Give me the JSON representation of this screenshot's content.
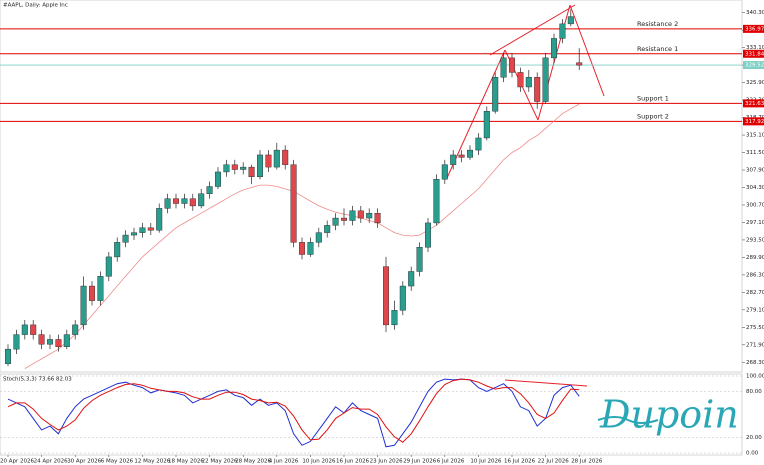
{
  "chart_data": [
    {
      "type": "candlestick",
      "title": "#AAPL, Daily: Apple Inc",
      "categories": [
        "20 Apr 2026",
        null,
        null,
        null,
        "24 Apr 2026",
        null,
        null,
        null,
        "30 Apr 2026",
        null,
        null,
        null,
        "6 May 2026",
        null,
        null,
        null,
        "12 May 2026",
        null,
        null,
        null,
        "18 May 2026",
        null,
        null,
        null,
        "22 May 2026",
        null,
        null,
        null,
        "28 May 2026",
        null,
        null,
        null,
        "4 Jun 2026",
        null,
        null,
        null,
        "10 Jun 2026",
        null,
        null,
        null,
        "16 Jun 2026",
        null,
        null,
        null,
        "23 Jun 2026",
        null,
        null,
        null,
        "29 Jun 2026",
        null,
        null,
        null,
        "6 Jul 2026",
        null,
        null,
        null,
        "10 Jul 2026",
        null,
        null,
        null,
        "16 Jul 2026",
        null,
        null,
        null,
        "22 Jul 2026",
        null,
        null,
        null,
        "28 Jul 2026"
      ],
      "open": [
        268,
        271,
        274,
        276,
        274,
        272,
        273,
        271.5,
        274,
        276,
        284,
        281,
        286,
        290,
        293,
        294.5,
        295,
        296,
        295.5,
        300,
        302,
        301,
        302,
        300.5,
        303,
        304.5,
        307.5,
        309,
        308,
        308.5,
        306.5,
        311,
        308.5,
        312,
        309,
        293,
        290.5,
        293,
        295,
        296.5,
        298,
        297.5,
        299.5,
        298,
        299,
        288,
        276,
        279,
        284,
        287,
        292,
        297,
        306,
        309,
        311,
        310.5,
        312,
        314.5,
        320,
        327,
        331,
        328,
        325,
        327,
        322,
        331,
        335,
        338,
        330
      ],
      "high": [
        272,
        275,
        277,
        277,
        275,
        274,
        274,
        275,
        277,
        286,
        285,
        287,
        291,
        294,
        295.5,
        296,
        297,
        297,
        301,
        303,
        303,
        303,
        303,
        304,
        305.5,
        308.5,
        310,
        310,
        309.5,
        309,
        312,
        312,
        313.5,
        313,
        310,
        294,
        294,
        296,
        297.5,
        299,
        300,
        300.5,
        300.5,
        300,
        300,
        290,
        281,
        285,
        288,
        293,
        298,
        307,
        310,
        312,
        312,
        313,
        315.5,
        321,
        328,
        332,
        332,
        329,
        328.5,
        328,
        332,
        336,
        339,
        341,
        333
      ],
      "low": [
        267.5,
        270,
        273,
        273,
        271,
        271,
        270.5,
        271,
        273,
        275,
        280,
        280,
        285,
        289,
        292,
        293.5,
        294,
        294.5,
        295,
        299,
        300,
        300,
        299.5,
        300,
        302,
        304,
        306.5,
        307,
        307,
        305,
        306,
        307.5,
        308,
        308,
        292,
        289.5,
        290,
        292,
        294,
        295.5,
        296.5,
        296.5,
        297,
        297,
        296,
        274.5,
        275,
        278,
        283,
        286,
        291,
        296.5,
        305,
        308,
        309.5,
        310,
        311,
        314,
        319.5,
        326,
        327,
        324,
        324,
        320.5,
        321.5,
        330,
        334,
        337.5,
        328.5
      ],
      "close": [
        271,
        274,
        276,
        274,
        272,
        273,
        271.5,
        274,
        276,
        284,
        281,
        286,
        290,
        293,
        294.5,
        295,
        296,
        295.5,
        300,
        302,
        301,
        302,
        300.5,
        303,
        304.5,
        307.5,
        309,
        308,
        308.5,
        306.5,
        311,
        308.5,
        312,
        309,
        293,
        290.5,
        293,
        295,
        296.5,
        298,
        297.5,
        299.5,
        298,
        299,
        297,
        276,
        279,
        284,
        287,
        292,
        297,
        306,
        309,
        311,
        310.5,
        312,
        314.5,
        320,
        327,
        331,
        328,
        325,
        327,
        322,
        331,
        335,
        338,
        339.5,
        329.5
      ],
      "up_color": "#2a9d8f",
      "down_color": "#e0474c",
      "moving_average": {
        "color": "#f08a8a",
        "values": [
          null,
          null,
          267,
          268,
          269,
          270,
          271,
          272.5,
          274,
          276,
          278,
          280,
          282,
          284,
          286,
          288,
          290,
          291.5,
          293,
          294.5,
          296,
          297,
          298,
          299,
          300,
          301,
          302,
          303,
          303.8,
          304.3,
          304.8,
          304.8,
          304.5,
          304,
          303.5,
          302.5,
          301.5,
          300.5,
          299.8,
          299.2,
          298.8,
          298.5,
          298,
          297.5,
          297,
          296,
          295,
          294.5,
          294.3,
          294.5,
          295.5,
          296.5,
          298,
          299.5,
          301,
          302.5,
          304,
          306,
          308,
          310,
          311.5,
          312.5,
          314,
          315,
          316.5,
          318,
          319.5,
          320.5,
          321.5
        ]
      },
      "levels": [
        {
          "label": "Resistance 2",
          "value": 336.97,
          "color": "#e00000"
        },
        {
          "label": "Resistance 1",
          "value": 331.84,
          "color": "#e00000"
        },
        {
          "label": "Support 1",
          "value": 321.63,
          "color": "#e00000"
        },
        {
          "label": "Support 2",
          "value": 317.92,
          "color": "#e00000"
        }
      ],
      "current_price": {
        "value": 329.52,
        "color": "#7fcfc6"
      },
      "ylim": [
        266.5,
        342.3
      ],
      "yticks": [
        {
          "value": 268.3,
          "label": "268.30"
        },
        {
          "value": 271.9,
          "label": "271.90"
        },
        {
          "value": 275.5,
          "label": "275.50"
        },
        {
          "value": 279.1,
          "label": "279.10"
        },
        {
          "value": 282.7,
          "label": "282.70"
        },
        {
          "value": 286.3,
          "label": "286.30"
        },
        {
          "value": 289.9,
          "label": "289.90"
        },
        {
          "value": 293.5,
          "label": "293.50"
        },
        {
          "value": 297.1,
          "label": "297.10"
        },
        {
          "value": 300.7,
          "label": "300.70"
        },
        {
          "value": 304.3,
          "label": "304.30"
        },
        {
          "value": 307.9,
          "label": "307.90"
        },
        {
          "value": 311.5,
          "label": "311.50"
        },
        {
          "value": 315.1,
          "label": "315.10"
        },
        {
          "value": 318.7,
          "label": "318.70"
        },
        {
          "value": 322.3,
          "label": "322.30"
        },
        {
          "value": 325.9,
          "label": "325.90"
        },
        {
          "value": 329.5,
          "label": "329.50"
        },
        {
          "value": 333.1,
          "label": "333.10"
        },
        {
          "value": 336.7,
          "label": "336.70"
        },
        {
          "value": 340.3,
          "label": "340.30"
        }
      ]
    },
    {
      "type": "line",
      "title": "Stoch(5,3,3) 73.66 82.03",
      "lines": [
        {
          "color": "#1f2fd0",
          "values": [
            70,
            65,
            60,
            45,
            30,
            35,
            25,
            45,
            60,
            70,
            75,
            80,
            85,
            90,
            92,
            88,
            85,
            78,
            82,
            80,
            78,
            75,
            65,
            70,
            75,
            80,
            82,
            75,
            72,
            62,
            70,
            62,
            65,
            55,
            25,
            10,
            15,
            30,
            45,
            60,
            52,
            65,
            55,
            50,
            45,
            8,
            10,
            25,
            40,
            60,
            80,
            92,
            96,
            95,
            96,
            95,
            85,
            80,
            85,
            90,
            80,
            60,
            55,
            35,
            45,
            75,
            85,
            88,
            73.66
          ]
        },
        {
          "color": "#e01010",
          "values": [
            60,
            65,
            65,
            57,
            45,
            37,
            30,
            35,
            43,
            58,
            68,
            75,
            80,
            85,
            89,
            90,
            88,
            84,
            82,
            80,
            80,
            78,
            73,
            70,
            70,
            75,
            79,
            79,
            76,
            70,
            68,
            65,
            66,
            61,
            48,
            30,
            17,
            18,
            30,
            45,
            52,
            59,
            57,
            57,
            50,
            34,
            21,
            14,
            25,
            42,
            60,
            77,
            89,
            94,
            96,
            95,
            92,
            87,
            83,
            85,
            85,
            77,
            65,
            50,
            45,
            52,
            68,
            83,
            82.03
          ]
        }
      ],
      "ylim": [
        0,
        100
      ],
      "yticks": [
        {
          "value": 100,
          "label": "100.00"
        },
        {
          "value": 80,
          "label": "80.00"
        },
        {
          "value": 20,
          "label": "20.00"
        },
        {
          "value": 0,
          "label": "0.00"
        }
      ]
    }
  ],
  "watermark": "Dupoin"
}
